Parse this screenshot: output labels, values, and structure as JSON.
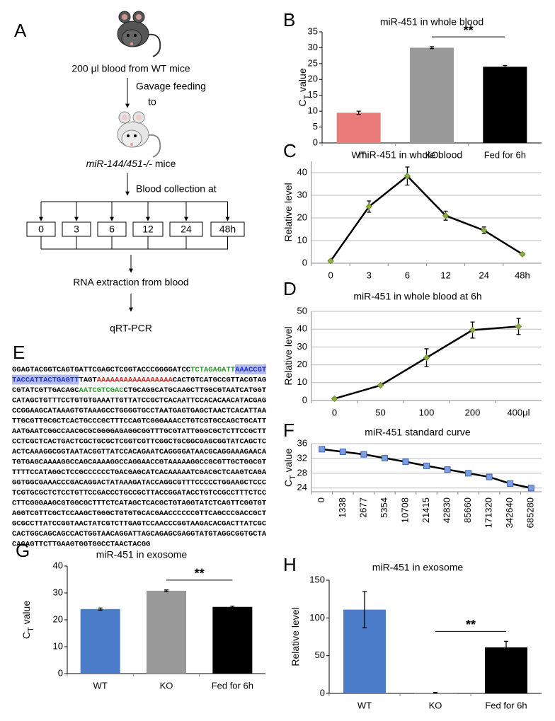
{
  "diagram": {
    "panel": "A",
    "source": "200 μl blood from WT mice",
    "step1": "Gavage feeding",
    "step1b": "to",
    "recipient_italic": "miR-144/451-/-",
    "recipient": "mice",
    "step2": "Blood collection at",
    "timepoints": [
      "0",
      "3",
      "6",
      "12",
      "24",
      "48h"
    ],
    "step3": "RNA extraction from blood",
    "step4": "qRT-PCR"
  },
  "sequence": {
    "panel": "E",
    "lines": [
      [
        {
          "text": "GGAGTACGGTCAGTGATTCGAGCTCGGTACCCGGGGATCC"
        },
        {
          "text": "TCTAGAGATT",
          "color": "#2a9a2a"
        },
        {
          "text": "AAACCGT",
          "color": "#2233cc",
          "background": "#b4bcec"
        }
      ],
      [
        {
          "text": "TACCATTACTGAGTT",
          "color": "#2233cc",
          "background": "#b4bcec"
        },
        {
          "text": "TAGT"
        },
        {
          "text": "AAAAAAAAAAAAAAAAA",
          "color": "#e02020"
        },
        {
          "text": "CACTGTCATGCCGTTACGTAG"
        }
      ],
      [
        {
          "text": "CGTATCGTTGACAGC"
        },
        {
          "text": "AATCGTCGAC",
          "color": "#2a9a2a"
        },
        {
          "text": "CTGCAGGCATGCAAGCTTGGCGTAATCATGGT"
        }
      ],
      [
        {
          "text": "CATAGCTGTTTCCTGTGTGAAATTGTTATCCGCTCACAATTCCACACAACATACGAG"
        }
      ],
      [
        {
          "text": "CCGGAAGCATAAAGTGTAAAGCCTGGGGTGCCTAATGAGTGAGCTAACTCACATTAA"
        }
      ],
      [
        {
          "text": "TTGCGTTGCGCTCACTGCCCGCTTTCCAGTCGGGAAACCTGTCGTGCCAGCTGCATT"
        }
      ],
      [
        {
          "text": "AATGAATCGGCCAACGCGCGGGGAGAGGCGGTTTGCGTATTGGGCGCTCTTCCGCTT"
        }
      ],
      [
        {
          "text": "CCTCGCTCACTGACTCGCTGCGCTCGGTCGTTCGGCTGCGGCGAGCGGTATCAGCTC"
        }
      ],
      [
        {
          "text": "ACTCAAAGGCGGTAATACGGTTATCCACAGAATCAGGGGATAACGCAGGAAAGAACA"
        }
      ],
      [
        {
          "text": "TGTGAGCAAAAGGCCAGCAAAAGGCCAGGAACCGTAAAAAGGCCGCGTTGCTGGCGT"
        }
      ],
      [
        {
          "text": "TTTTCCATAGGCTCCGCCCCCCTGACGAGCATCACAAAAATCGACGCTCAAGTCAGA"
        }
      ],
      [
        {
          "text": "GGTGGCGAAACCCGACAGGACTATAAAGATACCAGGCGTTTCCCCCTGGAAGCTCCC"
        }
      ],
      [
        {
          "text": "TCGTGCGCTCTCCTGTTCCGACCCTGCCGCTTACCGGATACCTGTCCGCCTTTCTCC"
        }
      ],
      [
        {
          "text": "CTTCGGGAAGCGTGGCGCTTTCTCATAGCTCACGCTGTAGGTATCTCAGTTCGGTGT"
        }
      ],
      [
        {
          "text": "AGGTCGTTCGCTCCAAGCTGGGCTGTGTGCACGAACCCCCCGTTCAGCCCGACCGCT"
        }
      ],
      [
        {
          "text": "GCGCCTTATCCGGTAACTATCGTCTTGAGTCCAACCCGGTAAGACACGACTTATCGC"
        }
      ],
      [
        {
          "text": "CACTGGCAGCAGCCACTGGTAACAGGATTAGCAGAGCGAGGTATGTAGGCGGTGCTA"
        }
      ],
      [
        {
          "text": "CAGAGTTCTTGAAGTGGTGGCCTAACTACGG"
        }
      ]
    ]
  },
  "chart_data": [
    {
      "type": "bar",
      "panel": "B",
      "title": "miR-451 in whole blood",
      "y_label": [
        {
          "text": "C"
        },
        {
          "text": "T",
          "sub": true
        },
        {
          "text": " value"
        }
      ],
      "categories": [
        "WT",
        "KO",
        "Fed for 6h"
      ],
      "values": [
        9.5,
        30,
        24
      ],
      "errors": [
        0.5,
        0.3,
        0.4
      ],
      "colors": [
        "#e87a7a",
        "#999999",
        "#000000"
      ],
      "ylim": [
        0,
        35
      ],
      "yticks": [
        0,
        5,
        10,
        15,
        20,
        25,
        30,
        35
      ],
      "grid": false,
      "annotation": "**"
    },
    {
      "type": "line",
      "panel": "C",
      "title": "miR-451 in whole blood",
      "y_label": [
        {
          "text": "Relative level"
        }
      ],
      "categories": [
        "0",
        "3",
        "6",
        "12",
        "24",
        "48h"
      ],
      "values": [
        1,
        25,
        38.5,
        21,
        14.5,
        4
      ],
      "errors": [
        0.5,
        2.5,
        4,
        2,
        1.5,
        0.5
      ],
      "color": "#000000",
      "marker_color": "#8fb040",
      "ylim": [
        0,
        45
      ],
      "yticks": [
        0,
        10,
        20,
        30,
        40
      ],
      "grid": true
    },
    {
      "type": "line",
      "panel": "D",
      "title": "miR-451 in whole blood at 6h",
      "y_label": [
        {
          "text": "Relative level"
        }
      ],
      "categories": [
        "0",
        "50",
        "100",
        "200",
        "400μl"
      ],
      "values": [
        1,
        8.5,
        24,
        39.5,
        41.5
      ],
      "errors": [
        0.5,
        0.5,
        5,
        4.5,
        4.5
      ],
      "color": "#000000",
      "marker_color": "#8fb040",
      "ylim": [
        0,
        50
      ],
      "yticks": [
        0,
        10,
        20,
        30,
        40,
        50
      ],
      "grid": true
    },
    {
      "type": "line",
      "panel": "F",
      "title": "miR-451 standard curve",
      "y_label": [
        {
          "text": "C"
        },
        {
          "text": "T",
          "sub": true
        },
        {
          "text": " value"
        }
      ],
      "categories": [
        "0",
        "1338",
        "2677",
        "5354",
        "10708",
        "21415",
        "42830",
        "85660",
        "171320",
        "342640",
        "685280"
      ],
      "values": [
        34.5,
        33.8,
        33.1,
        32.1,
        31.1,
        30.0,
        29.0,
        28.0,
        27.0,
        25.2,
        24.0
      ],
      "color": "#000000",
      "marker_color": "#7a9ee0",
      "marker": "square",
      "ylim": [
        23,
        36
      ],
      "yticks": [
        24,
        28,
        32,
        36
      ],
      "grid": true,
      "rotate_labels": true
    },
    {
      "type": "bar",
      "panel": "G",
      "title": "miR-451 in exosome",
      "y_label": [
        {
          "text": "C"
        },
        {
          "text": "T",
          "sub": true
        },
        {
          "text": " value"
        }
      ],
      "categories": [
        "WT",
        "KO",
        "Fed for 6h"
      ],
      "values": [
        24,
        30.8,
        24.8
      ],
      "errors": [
        0.4,
        0.3,
        0.3
      ],
      "colors": [
        "#4a7cc9",
        "#999999",
        "#000000"
      ],
      "ylim": [
        0,
        40
      ],
      "yticks": [
        0,
        10,
        20,
        30,
        40
      ],
      "grid": false,
      "annotation": "**"
    },
    {
      "type": "bar",
      "panel": "H",
      "title": "miR-451 in exosome",
      "y_label": [
        {
          "text": "Relative level"
        }
      ],
      "categories": [
        "WT",
        "KO",
        "Fed for 6h"
      ],
      "values": [
        111,
        0.8,
        61
      ],
      "errors": [
        24,
        0.5,
        8
      ],
      "colors": [
        "#4a7cc9",
        "#999999",
        "#000000"
      ],
      "ylim": [
        0,
        150
      ],
      "yticks": [
        0,
        50,
        100,
        150
      ],
      "grid": false,
      "annotation": "**"
    }
  ]
}
